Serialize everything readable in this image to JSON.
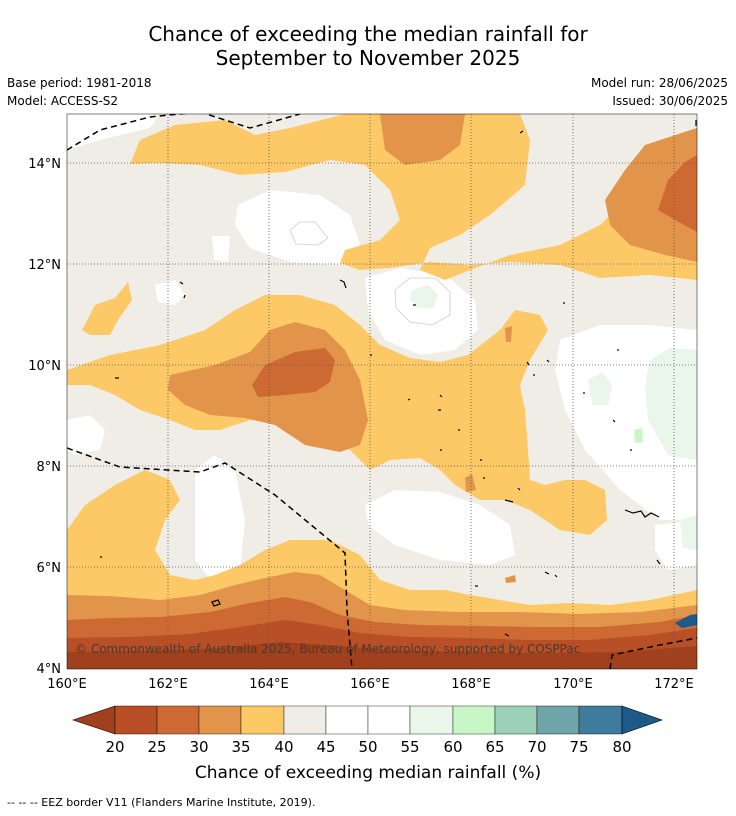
{
  "title_line1": "Chance of exceeding the median rainfall for",
  "title_line2": "September to November 2025",
  "base_period": "Base period: 1981-2018",
  "model": "Model: ACCESS-S2",
  "model_run": "Model run: 28/06/2025",
  "issued": "Issued: 30/06/2025",
  "copyright": "© Commonwealth of Australia 2025, Bureau of Meteorology, supported by COSPPac",
  "footnote": "-- -- -- EEZ border V11 (Flanders Marine Institute, 2019).",
  "colorbar_label": "Chance of exceeding median rainfall (%)",
  "x_ticks": [
    "160°E",
    "162°E",
    "164°E",
    "166°E",
    "168°E",
    "170°E",
    "172°E"
  ],
  "y_ticks": [
    "14°N",
    "12°N",
    "10°N",
    "8°N",
    "6°N",
    "4°N"
  ],
  "colorbar_ticks": [
    "20",
    "25",
    "30",
    "35",
    "40",
    "45",
    "50",
    "55",
    "60",
    "65",
    "70",
    "75",
    "80"
  ],
  "colorbar_colors": [
    "#a0401c",
    "#b84f26",
    "#cd6a33",
    "#e2954a",
    "#fdc967",
    "#f0ede6",
    "#ffffff",
    "#ffffff",
    "#e9f6e9",
    "#c7f7c7",
    "#9ccfb7",
    "#6fa4a8",
    "#3f7b9c",
    "#1d5a8a"
  ],
  "palette": {
    "c20": "#a0401c",
    "c25": "#b84f26",
    "c30": "#cd6a33",
    "c35": "#e2954a",
    "c40": "#fdc967",
    "c45": "#f0ede6",
    "c50": "#ffffff",
    "c60": "#e9f6e9",
    "c65": "#c7f7c7"
  }
}
